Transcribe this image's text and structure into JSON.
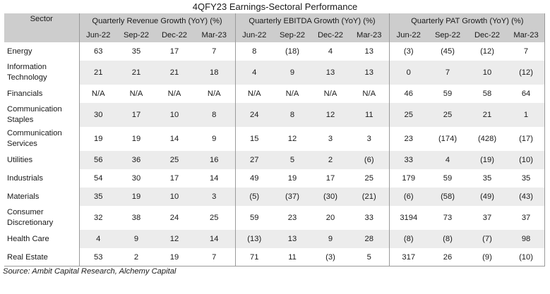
{
  "title": "4QFY23 Earnings-Sectoral Performance",
  "header": {
    "sector_label": "Sector",
    "groups": [
      "Quarterly Revenue Growth (YoY) (%)",
      "Quarterly EBITDA Growth (YoY) (%)",
      "Quarterly PAT Growth (YoY) (%)"
    ],
    "quarters": [
      "Jun-22",
      "Sep-22",
      "Dec-22",
      "Mar-23"
    ]
  },
  "rows": [
    {
      "sector": "Energy",
      "values": [
        "63",
        "35",
        "17",
        "7",
        "8",
        "(18)",
        "4",
        "13",
        "(3)",
        "(45)",
        "(12)",
        "7"
      ]
    },
    {
      "sector": "Information Technology",
      "values": [
        "21",
        "21",
        "21",
        "18",
        "4",
        "9",
        "13",
        "13",
        "0",
        "7",
        "10",
        "(12)"
      ]
    },
    {
      "sector": "Financials",
      "values": [
        "N/A",
        "N/A",
        "N/A",
        "N/A",
        "N/A",
        "N/A",
        "N/A",
        "N/A",
        "46",
        "59",
        "58",
        "64"
      ]
    },
    {
      "sector": "Communication Staples",
      "values": [
        "30",
        "17",
        "10",
        "8",
        "24",
        "8",
        "12",
        "11",
        "25",
        "25",
        "21",
        "1"
      ]
    },
    {
      "sector": "Communication Services",
      "values": [
        "19",
        "19",
        "14",
        "9",
        "15",
        "12",
        "3",
        "3",
        "23",
        "(174)",
        "(428)",
        "(17)"
      ]
    },
    {
      "sector": "Utilities",
      "values": [
        "56",
        "36",
        "25",
        "16",
        "27",
        "5",
        "2",
        "(6)",
        "33",
        "4",
        "(19)",
        "(10)"
      ]
    },
    {
      "sector": "Industrials",
      "values": [
        "54",
        "30",
        "17",
        "14",
        "49",
        "19",
        "17",
        "25",
        "179",
        "59",
        "35",
        "35"
      ]
    },
    {
      "sector": "Materials",
      "values": [
        "35",
        "19",
        "10",
        "3",
        "(5)",
        "(37)",
        "(30)",
        "(21)",
        "(6)",
        "(58)",
        "(49)",
        "(43)"
      ]
    },
    {
      "sector": "Consumer Discretionary",
      "values": [
        "32",
        "38",
        "24",
        "25",
        "59",
        "23",
        "20",
        "33",
        "3194",
        "73",
        "37",
        "37"
      ]
    },
    {
      "sector": "Health Care",
      "values": [
        "4",
        "9",
        "12",
        "14",
        "(13)",
        "13",
        "9",
        "28",
        "(8)",
        "(8)",
        "(7)",
        "98"
      ]
    },
    {
      "sector": "Real Estate",
      "values": [
        "53",
        "2",
        "19",
        "7",
        "71",
        "11",
        "(3)",
        "5",
        "317",
        "26",
        "(9)",
        "(10)"
      ]
    }
  ],
  "source": "Source: Ambit Capital Research, Alchemy Capital",
  "colors": {
    "header_bg": "#cdcdcd",
    "alt_row_bg": "#ececec",
    "divider": "#9a9a9a"
  }
}
